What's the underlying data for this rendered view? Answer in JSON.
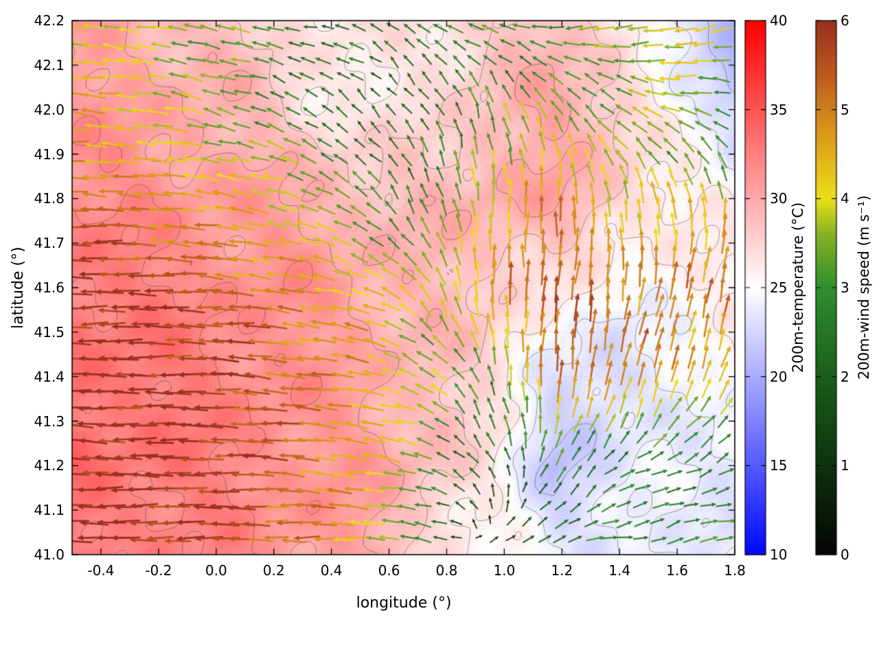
{
  "figure": {
    "xlabel": "longitude (°)",
    "ylabel": "latitude (°)",
    "xlim": [
      -0.5,
      1.8
    ],
    "ylim": [
      41.0,
      42.2
    ],
    "x_tick_labels": [
      "-0.4",
      "-0.2",
      "0.0",
      "0.2",
      "0.4",
      "0.6",
      "0.8",
      "1.0",
      "1.2",
      "1.4",
      "1.6",
      "1.8"
    ],
    "y_tick_labels": [
      "41.0",
      "41.1",
      "41.2",
      "41.3",
      "41.4",
      "41.5",
      "41.6",
      "41.7",
      "41.8",
      "41.9",
      "42.0",
      "42.1",
      "42.2"
    ]
  },
  "colorbars": [
    {
      "id": "temperature",
      "label": "200m-temperature (°C)",
      "range": [
        10,
        40
      ],
      "tick_labels": [
        "10",
        "15",
        "20",
        "25",
        "30",
        "35",
        "40"
      ],
      "stops": [
        {
          "v": 10,
          "c": "#0008ff"
        },
        {
          "v": 25,
          "c": "#ffffff"
        },
        {
          "v": 40,
          "c": "#ff0000"
        }
      ]
    },
    {
      "id": "wind-speed",
      "label": "200m-wind speed (m s⁻¹)",
      "range": [
        0,
        6
      ],
      "tick_labels": [
        "0",
        "1",
        "2",
        "3",
        "4",
        "5",
        "6"
      ],
      "stops": [
        {
          "v": 0,
          "c": "#050505"
        },
        {
          "v": 1,
          "c": "#0d330d"
        },
        {
          "v": 2,
          "c": "#1b5e1b"
        },
        {
          "v": 3,
          "c": "#2f8f2f"
        },
        {
          "v": 3.6,
          "c": "#86b322"
        },
        {
          "v": 4,
          "c": "#ecdf1a"
        },
        {
          "v": 4.7,
          "c": "#dc9c1a"
        },
        {
          "v": 5.4,
          "c": "#bc5a1e"
        },
        {
          "v": 6,
          "c": "#97301f"
        }
      ]
    }
  ],
  "chart_data": {
    "type": "heatmap",
    "overlays": [
      "contour",
      "quiver"
    ],
    "title": "",
    "xlabel": "longitude (°)",
    "ylabel": "latitude (°)",
    "xlim": [
      -0.5,
      1.8
    ],
    "ylim": [
      41.0,
      42.2
    ],
    "grid": "faint dotted",
    "legend_position": "two vertical colorbars right of plot",
    "description": "200 m temperature field (blue-white-red shading, 10-40 °C) with thin gray contour lines and a dense field of wind-vector arrows colored by 200 m wind speed (black-green-yellow-orange-dark red, 0-6 m/s). Strong ~6 m/s westward (left-pointing) dark-red arrows cover the west/southwest; dark-red/orange arrows turn northward in the center-east; weaker 2-4 m/s green/yellow arrows occupy the northern band; ~3 m/s light-green eastward arrows fill the cooler bluish southeast corner; bluish cool patches also appear in the northeast corner.",
    "contour_levels_c": [
      20,
      22,
      24,
      26,
      28,
      30,
      32
    ],
    "temperature_grid": {
      "units": "°C",
      "lon": [
        -0.5,
        -0.29,
        -0.08,
        0.13,
        0.34,
        0.55,
        0.75,
        0.96,
        1.17,
        1.38,
        1.59,
        1.8
      ],
      "lat_north_to_south": [
        42.2,
        42.0,
        41.8,
        41.6,
        41.4,
        41.2,
        41.0
      ],
      "values": [
        [
          30,
          30,
          29,
          28,
          26.5,
          26,
          27,
          28,
          29,
          27,
          23,
          21
        ],
        [
          31,
          30.5,
          30,
          29,
          27,
          26,
          27,
          29,
          30,
          29,
          25,
          22
        ],
        [
          32,
          31.5,
          31,
          30.5,
          30,
          29,
          29,
          30,
          30,
          28,
          26.5,
          25.5
        ],
        [
          33,
          32.5,
          32,
          31.5,
          31,
          30,
          29,
          28,
          26.5,
          24.5,
          25.5,
          26
        ],
        [
          33.5,
          33,
          32.5,
          32,
          31,
          30,
          29,
          27,
          23.5,
          22,
          24.5,
          25
        ],
        [
          33.5,
          33,
          32.5,
          32,
          31,
          30.5,
          29,
          26,
          21.5,
          23.5,
          24,
          24
        ],
        [
          32.5,
          32.5,
          32,
          31.5,
          31,
          30,
          27,
          25,
          24,
          24,
          24,
          23.5
        ]
      ]
    },
    "wind_grid": {
      "units": "m s⁻¹",
      "lon": [
        -0.5,
        -0.29,
        -0.08,
        0.13,
        0.34,
        0.55,
        0.75,
        0.96,
        1.17,
        1.38,
        1.59,
        1.8
      ],
      "lat_north_to_south": [
        42.2,
        42.0,
        41.8,
        41.6,
        41.4,
        41.2,
        41.0
      ],
      "u": [
        [
          -4,
          -4,
          -3.5,
          -3,
          -2.5,
          -2,
          -2.5,
          -3,
          -3,
          -3.5,
          -4,
          -4
        ],
        [
          -4.5,
          -4,
          -3.5,
          -3,
          -2,
          -1.5,
          -1,
          -1,
          -2,
          -3,
          -3.5,
          -3
        ],
        [
          -5,
          -5,
          -4.5,
          -4,
          -3.5,
          -2,
          -1,
          0,
          0,
          -1,
          -1,
          0
        ],
        [
          -6,
          -6,
          -5.5,
          -5,
          -4.5,
          -4,
          -2,
          0,
          0.5,
          0.5,
          1,
          1
        ],
        [
          -6,
          -6,
          -6,
          -5.5,
          -5,
          -4.5,
          -3,
          -1,
          0.5,
          1,
          1.5,
          1.5
        ],
        [
          -6,
          -6,
          -6,
          -5.5,
          -5,
          -4,
          -3,
          -1,
          1,
          2,
          2.5,
          2.5
        ],
        [
          -6,
          -6,
          -5.5,
          -5.5,
          -5,
          -4,
          -2,
          1,
          2.5,
          3,
          3,
          3
        ]
      ],
      "v": [
        [
          0.5,
          0.5,
          1,
          0.5,
          0.5,
          1,
          1.5,
          1,
          0,
          -0.5,
          -1,
          -1
        ],
        [
          0.5,
          0.5,
          1,
          1,
          1.5,
          1.5,
          2,
          3,
          3,
          2,
          1,
          1
        ],
        [
          0,
          0.5,
          0.5,
          1,
          1.5,
          2,
          3,
          4,
          5,
          4,
          4,
          4
        ],
        [
          0,
          0,
          0.5,
          0.5,
          1,
          1.5,
          3,
          5,
          5.5,
          5,
          5,
          5
        ],
        [
          0,
          0,
          0,
          0.5,
          0.5,
          1,
          2,
          3,
          5,
          5,
          4.5,
          4
        ],
        [
          0.5,
          0,
          0,
          0,
          0.5,
          0.5,
          1,
          2,
          2.5,
          1.5,
          1,
          1
        ],
        [
          0,
          0,
          0,
          0,
          0,
          0.5,
          0.5,
          0.5,
          0.5,
          0.5,
          0.5,
          0.5
        ]
      ]
    }
  }
}
